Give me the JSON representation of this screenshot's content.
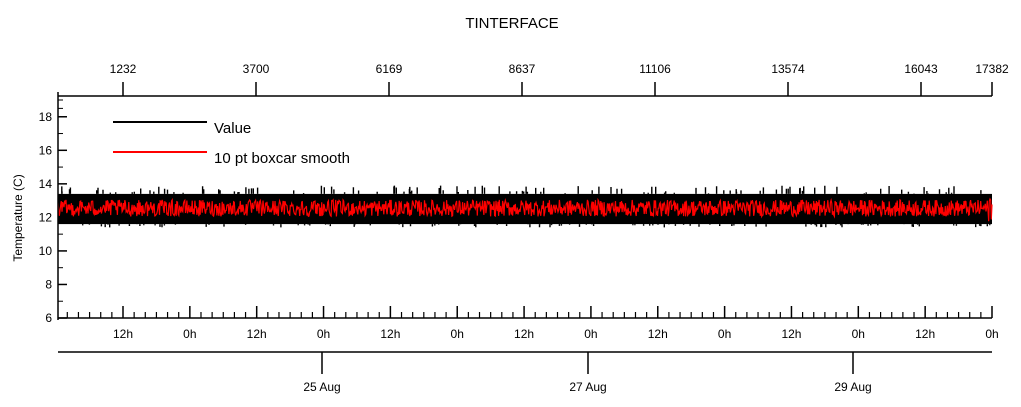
{
  "chart_data": {
    "type": "line",
    "title": "TINTERFACE",
    "ylabel": "Temperature (C)",
    "ylim": [
      6,
      19
    ],
    "yticks": [
      "6",
      "8",
      "10",
      "12",
      "14",
      "16",
      "18"
    ],
    "top_axis": {
      "ticks": [
        "1232",
        "3700",
        "6169",
        "8637",
        "11106",
        "13574",
        "16043",
        "17382"
      ]
    },
    "bottom_axis": {
      "hour_ticks": [
        "12h",
        "0h",
        "12h",
        "0h",
        "12h",
        "0h",
        "12h",
        "0h",
        "12h",
        "0h",
        "12h",
        "0h",
        "12h",
        "0h"
      ],
      "date_ticks": [
        "25 Aug",
        "27 Aug",
        "29 Aug"
      ],
      "time_range": [
        "2023-08-23T00:00",
        "2023-08-30T12:00"
      ]
    },
    "legend": {
      "placement": "top-left"
    },
    "series": [
      {
        "name": "Value",
        "color": "#000000",
        "baseline": 12.6,
        "band": [
          11.6,
          13.4
        ],
        "spikes_up_max": 13.9,
        "spikes_down_min": 11.4
      },
      {
        "name": "10 pt boxcar smooth",
        "color": "#ff0000",
        "baseline": 12.5,
        "band": [
          12.0,
          13.1
        ],
        "end_spike_max": 13.8
      }
    ]
  }
}
